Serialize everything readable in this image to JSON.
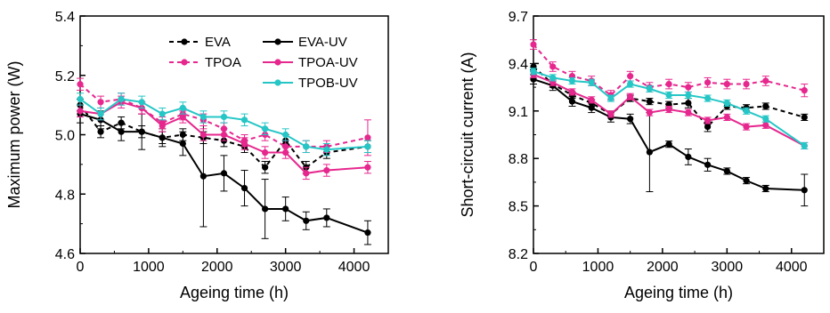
{
  "chart_data": [
    {
      "type": "line",
      "xlabel": "Ageing time (h)",
      "ylabel": "Maximum power (W)",
      "xlim": [
        0,
        4500
      ],
      "ylim": [
        4.6,
        5.4
      ],
      "xticks": [
        "0",
        "1000",
        "2000",
        "3000",
        "4000"
      ],
      "yticks": [
        "4.6",
        "4.8",
        "5.0",
        "5.2",
        "5.4"
      ],
      "x": [
        0,
        300,
        600,
        900,
        1200,
        1500,
        1800,
        2100,
        2400,
        2700,
        3000,
        3300,
        3600,
        4200
      ],
      "legend": {
        "position": "top-right",
        "columns": 2
      },
      "series": [
        {
          "name": "EVA",
          "color": "#000000",
          "dashed": true,
          "values": [
            5.1,
            5.01,
            5.04,
            5.01,
            4.99,
            5.0,
            4.99,
            4.98,
            4.96,
            4.89,
            4.98,
            4.89,
            4.94,
            4.96
          ],
          "errors": [
            0.02,
            0.02,
            0.02,
            0.02,
            0.02,
            0.02,
            0.02,
            0.02,
            0.02,
            0.02,
            0.02,
            0.02,
            0.02,
            0.02
          ]
        },
        {
          "name": "EVA-UV",
          "color": "#000000",
          "dashed": false,
          "values": [
            5.07,
            5.05,
            5.01,
            5.01,
            4.99,
            4.97,
            4.86,
            4.87,
            4.82,
            4.75,
            4.75,
            4.71,
            4.72,
            4.67
          ],
          "errors": [
            0.03,
            0.03,
            0.03,
            0.06,
            0.03,
            0.04,
            0.17,
            0.06,
            0.06,
            0.1,
            0.04,
            0.03,
            0.03,
            0.04
          ]
        },
        {
          "name": "TPOA",
          "color": "#e6278e",
          "dashed": true,
          "values": [
            5.17,
            5.11,
            5.12,
            5.09,
            5.04,
            5.07,
            5.05,
            5.02,
            4.98,
            5.0,
            4.96,
            4.96,
            4.96,
            4.99
          ],
          "errors": [
            0.02,
            0.02,
            0.02,
            0.02,
            0.02,
            0.02,
            0.02,
            0.02,
            0.02,
            0.02,
            0.02,
            0.02,
            0.02,
            0.06
          ]
        },
        {
          "name": "TPOA-UV",
          "color": "#e6278e",
          "dashed": false,
          "values": [
            5.08,
            5.07,
            5.11,
            5.09,
            5.03,
            5.06,
            5.0,
            5.0,
            4.97,
            4.94,
            4.94,
            4.87,
            4.88,
            4.89
          ],
          "errors": [
            0.02,
            0.02,
            0.02,
            0.02,
            0.02,
            0.02,
            0.02,
            0.02,
            0.02,
            0.02,
            0.02,
            0.02,
            0.02,
            0.02
          ]
        },
        {
          "name": "TPOB-UV",
          "color": "#26c6c6",
          "dashed": false,
          "values": [
            5.12,
            5.07,
            5.12,
            5.11,
            5.07,
            5.09,
            5.06,
            5.06,
            5.05,
            5.02,
            5.0,
            4.96,
            4.95,
            4.96
          ],
          "errors": [
            0.02,
            0.02,
            0.02,
            0.02,
            0.02,
            0.02,
            0.02,
            0.02,
            0.02,
            0.02,
            0.02,
            0.02,
            0.02,
            0.02
          ]
        }
      ]
    },
    {
      "type": "line",
      "xlabel": "Ageing time (h)",
      "ylabel": "Short-circuit current (A)",
      "xlim": [
        0,
        4500
      ],
      "ylim": [
        8.2,
        9.7
      ],
      "xticks": [
        "0",
        "1000",
        "2000",
        "3000",
        "4000"
      ],
      "yticks": [
        "8.2",
        "8.5",
        "8.8",
        "9.1",
        "9.4",
        "9.7"
      ],
      "x": [
        0,
        300,
        600,
        900,
        1200,
        1500,
        1800,
        2100,
        2400,
        2700,
        3000,
        3300,
        3600,
        4200
      ],
      "series": [
        {
          "name": "EVA",
          "color": "#000000",
          "dashed": true,
          "values": [
            9.38,
            9.27,
            9.2,
            9.15,
            9.08,
            9.18,
            9.16,
            9.14,
            9.15,
            9.0,
            9.13,
            9.12,
            9.13,
            9.06
          ],
          "errors": [
            0.02,
            0.02,
            0.02,
            0.02,
            0.02,
            0.02,
            0.02,
            0.02,
            0.03,
            0.03,
            0.02,
            0.02,
            0.02,
            0.02
          ]
        },
        {
          "name": "EVA-UV",
          "color": "#000000",
          "dashed": false,
          "values": [
            9.3,
            9.26,
            9.16,
            9.12,
            9.06,
            9.05,
            8.84,
            8.89,
            8.81,
            8.76,
            8.72,
            8.66,
            8.61,
            8.6
          ],
          "errors": [
            0.03,
            0.03,
            0.03,
            0.03,
            0.03,
            0.03,
            0.25,
            0.02,
            0.05,
            0.04,
            0.02,
            0.02,
            0.02,
            0.1
          ]
        },
        {
          "name": "TPOA",
          "color": "#e6278e",
          "dashed": true,
          "values": [
            9.52,
            9.38,
            9.32,
            9.29,
            9.2,
            9.32,
            9.25,
            9.27,
            9.25,
            9.28,
            9.27,
            9.27,
            9.29,
            9.23
          ],
          "errors": [
            0.03,
            0.03,
            0.03,
            0.03,
            0.03,
            0.03,
            0.03,
            0.03,
            0.03,
            0.03,
            0.03,
            0.03,
            0.03,
            0.04
          ]
        },
        {
          "name": "TPOA-UV",
          "color": "#e6278e",
          "dashed": false,
          "values": [
            9.33,
            9.28,
            9.22,
            9.17,
            9.08,
            9.19,
            9.09,
            9.11,
            9.09,
            9.04,
            9.06,
            9.0,
            9.01,
            8.88
          ],
          "errors": [
            0.02,
            0.02,
            0.02,
            0.02,
            0.02,
            0.02,
            0.02,
            0.02,
            0.02,
            0.02,
            0.02,
            0.02,
            0.02,
            0.02
          ]
        },
        {
          "name": "TPOB-UV",
          "color": "#26c6c6",
          "dashed": false,
          "values": [
            9.35,
            9.31,
            9.29,
            9.28,
            9.18,
            9.27,
            9.24,
            9.2,
            9.2,
            9.18,
            9.15,
            9.1,
            9.05,
            8.88
          ],
          "errors": [
            0.02,
            0.02,
            0.02,
            0.02,
            0.02,
            0.02,
            0.02,
            0.02,
            0.02,
            0.02,
            0.02,
            0.02,
            0.02,
            0.02
          ]
        }
      ]
    }
  ]
}
